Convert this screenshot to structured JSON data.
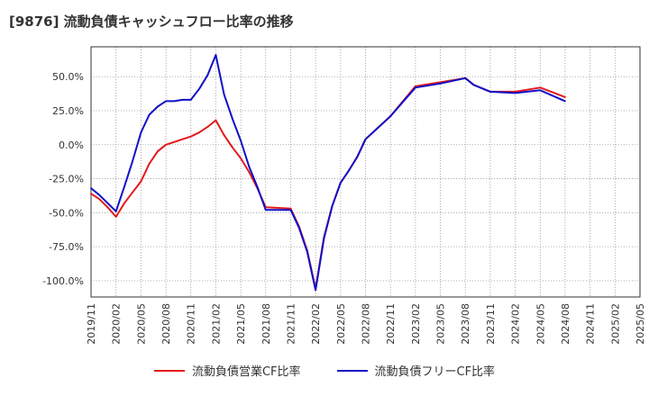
{
  "chart_data": {
    "type": "line",
    "title": "[9876]  流動負債キャッシュフロー比率の推移",
    "xlabel": "",
    "ylabel": "",
    "ylim": [
      -112,
      72
    ],
    "y_ticks": [
      50,
      25,
      0,
      -25,
      -50,
      -75,
      -100
    ],
    "y_tick_labels": [
      "50.0%",
      "25.0%",
      "0.0%",
      "-25.0%",
      "-50.0%",
      "-75.0%",
      "-100.0%"
    ],
    "x_range": [
      "2019/11",
      "2025/05"
    ],
    "x_tick_labels": [
      "2019/11",
      "2020/02",
      "2020/05",
      "2020/08",
      "2020/11",
      "2021/02",
      "2021/05",
      "2021/08",
      "2021/11",
      "2022/02",
      "2022/05",
      "2022/08",
      "2022/11",
      "2023/02",
      "2023/05",
      "2023/08",
      "2023/11",
      "2024/02",
      "2024/05",
      "2024/08",
      "2024/11",
      "2025/02",
      "2025/05"
    ],
    "grid": true,
    "legend_position": "bottom",
    "series": [
      {
        "name": "流動負債営業CF比率",
        "color": "#e31a1c",
        "x": [
          "2019/11",
          "2019/12",
          "2020/01",
          "2020/02",
          "2020/03",
          "2020/04",
          "2020/05",
          "2020/06",
          "2020/07",
          "2020/08",
          "2020/09",
          "2020/10",
          "2020/11",
          "2020/12",
          "2021/01",
          "2021/02",
          "2021/03",
          "2021/04",
          "2021/05",
          "2021/06",
          "2021/07",
          "2021/08",
          "2021/11",
          "2021/12",
          "2022/01",
          "2022/02",
          "2022/03",
          "2022/04",
          "2022/05",
          "2022/06",
          "2022/07",
          "2022/08",
          "2022/11",
          "2023/02",
          "2023/05",
          "2023/08",
          "2023/09",
          "2023/11",
          "2024/02",
          "2024/05",
          "2024/08"
        ],
        "values": [
          -36,
          -40,
          -46,
          -53,
          -43,
          -35,
          -27,
          -14,
          -5,
          0,
          2,
          4,
          6,
          9,
          13,
          18,
          7,
          -2,
          -10,
          -20,
          -32,
          -46,
          -47,
          -60,
          -78,
          -106,
          -68,
          -45,
          -28,
          -19,
          -9,
          4,
          21,
          43,
          46,
          49,
          44,
          39,
          39,
          42,
          35
        ]
      },
      {
        "name": "流動負債フリーCF比率",
        "color": "#1010c8",
        "x": [
          "2019/11",
          "2019/12",
          "2020/01",
          "2020/02",
          "2020/03",
          "2020/04",
          "2020/05",
          "2020/06",
          "2020/07",
          "2020/08",
          "2020/09",
          "2020/10",
          "2020/11",
          "2020/12",
          "2021/01",
          "2021/02",
          "2021/03",
          "2021/04",
          "2021/05",
          "2021/06",
          "2021/07",
          "2021/08",
          "2021/11",
          "2021/12",
          "2022/01",
          "2022/02",
          "2022/03",
          "2022/04",
          "2022/05",
          "2022/06",
          "2022/07",
          "2022/08",
          "2022/11",
          "2023/02",
          "2023/05",
          "2023/08",
          "2023/09",
          "2023/11",
          "2024/02",
          "2024/05",
          "2024/08"
        ],
        "values": [
          -32,
          -37,
          -43,
          -49,
          -31,
          -12,
          9,
          22,
          28,
          32,
          32,
          33,
          33,
          41,
          51,
          66,
          37,
          19,
          3,
          -16,
          -31,
          -48,
          -48,
          -61,
          -79,
          -107,
          -69,
          -45,
          -28,
          -19,
          -9,
          4,
          21,
          42,
          45,
          49,
          44,
          39,
          38,
          40,
          32
        ]
      }
    ]
  }
}
